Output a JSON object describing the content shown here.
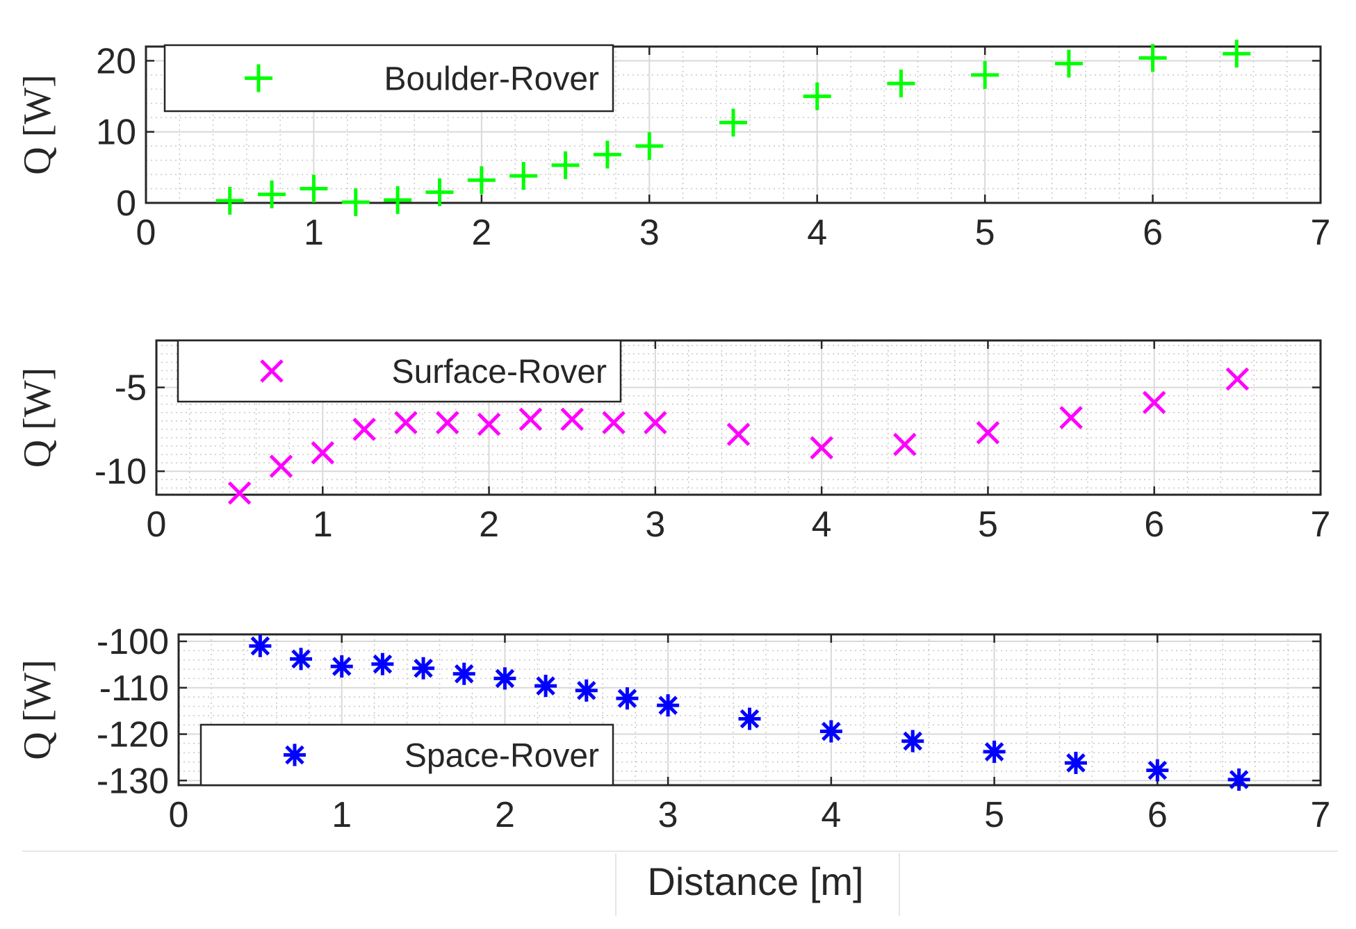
{
  "chart_data": [
    {
      "type": "scatter",
      "marker": "plus",
      "color": "#00ff00",
      "series": [
        {
          "name": "Boulder-Rover",
          "x": [
            0.5,
            0.75,
            1.0,
            1.25,
            1.5,
            1.75,
            2.0,
            2.25,
            2.5,
            2.75,
            3.0,
            3.5,
            4.0,
            4.5,
            5.0,
            5.5,
            6.0,
            6.5
          ],
          "y": [
            0.3,
            1.2,
            2.0,
            0.1,
            0.4,
            1.5,
            3.2,
            3.8,
            5.3,
            6.8,
            8.0,
            11.3,
            15.0,
            16.8,
            18.0,
            19.6,
            20.4,
            21.0
          ]
        }
      ],
      "ylabel": "Q [W]",
      "xlim": [
        0,
        7
      ],
      "ylim": [
        0,
        22
      ],
      "xticks": [
        "0",
        "1",
        "2",
        "3",
        "4",
        "5",
        "6",
        "7"
      ],
      "yticks": [
        "0",
        "10",
        "20"
      ],
      "ytick_values": [
        0,
        10,
        20
      ],
      "grid": true,
      "minor_grid": true,
      "legend_position": "top-left"
    },
    {
      "type": "scatter",
      "marker": "x",
      "color": "#ff00ff",
      "series": [
        {
          "name": "Surface-Rover",
          "x": [
            0.5,
            0.75,
            1.0,
            1.25,
            1.5,
            1.75,
            2.0,
            2.25,
            2.5,
            2.75,
            3.0,
            3.5,
            4.0,
            4.5,
            5.0,
            5.5,
            6.0,
            6.5
          ],
          "y": [
            -11.3,
            -9.7,
            -8.9,
            -7.5,
            -7.1,
            -7.1,
            -7.2,
            -6.9,
            -6.9,
            -7.1,
            -7.1,
            -7.8,
            -8.6,
            -8.4,
            -7.7,
            -6.8,
            -5.9,
            -4.5
          ]
        }
      ],
      "ylabel": "Q [W]",
      "xlim": [
        0,
        7
      ],
      "ylim": [
        -11.4,
        -2.2
      ],
      "xticks": [
        "0",
        "1",
        "2",
        "3",
        "4",
        "5",
        "6",
        "7"
      ],
      "yticks": [
        "-5",
        "-10"
      ],
      "ytick_values": [
        -5,
        -10
      ],
      "grid": true,
      "minor_grid": true,
      "legend_position": "top-left"
    },
    {
      "type": "scatter",
      "marker": "asterisk",
      "color": "#0000ff",
      "series": [
        {
          "name": "Space-Rover",
          "x": [
            0.5,
            0.75,
            1.0,
            1.25,
            1.5,
            1.75,
            2.0,
            2.25,
            2.5,
            2.75,
            3.0,
            3.5,
            4.0,
            4.5,
            5.0,
            5.5,
            6.0,
            6.5
          ],
          "y": [
            -101,
            -103.8,
            -105.4,
            -104.9,
            -105.8,
            -107,
            -108,
            -109.6,
            -110.6,
            -112.3,
            -113.8,
            -116.7,
            -119.4,
            -121.5,
            -123.8,
            -126.2,
            -127.8,
            -129.8
          ]
        }
      ],
      "ylabel": "Q [W]",
      "xlabel": "Distance [m]",
      "xlim": [
        0,
        7
      ],
      "ylim": [
        -131,
        -98.5
      ],
      "xticks": [
        "0",
        "1",
        "2",
        "3",
        "4",
        "5",
        "6",
        "7"
      ],
      "yticks": [
        "-100",
        "-110",
        "-120",
        "-130"
      ],
      "ytick_values": [
        -100,
        -110,
        -120,
        -130
      ],
      "grid": true,
      "minor_grid": true,
      "legend_position": "bottom-left"
    }
  ]
}
